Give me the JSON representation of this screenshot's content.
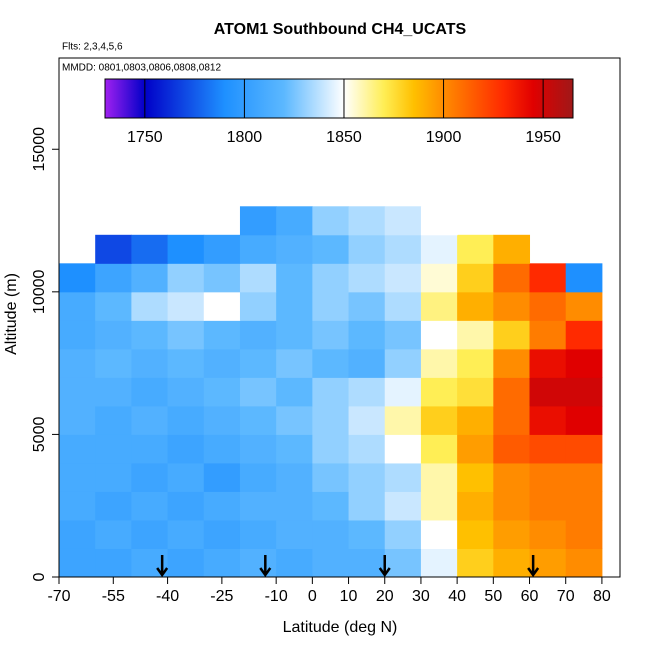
{
  "chart_data": {
    "type": "heatmap",
    "title": "ATOM1 Southbound CH4_UCATS",
    "subtitle": "Flts: 2,3,4,5,6",
    "annotation": "MMDD: 0801,0803,0806,0808,0812",
    "x_label": "Latitude (deg N)",
    "y_label": "Altitude (m)",
    "xlim": [
      -70,
      85
    ],
    "ylim": [
      0,
      18200
    ],
    "xticks": [
      -70,
      -55,
      -40,
      -25,
      -10,
      0,
      10,
      20,
      30,
      40,
      50,
      60,
      70,
      80
    ],
    "yticks": [
      0,
      5000,
      10000,
      15000
    ],
    "xbins": [
      -70,
      -60,
      -50,
      -40,
      -30,
      -20,
      -10,
      0,
      10,
      20,
      30,
      40,
      50,
      60,
      70,
      80
    ],
    "ybins": [
      0,
      1000,
      2000,
      3000,
      4000,
      5000,
      6000,
      7000,
      8000,
      9000,
      10000,
      11000,
      12000,
      13000
    ],
    "z": [
      [
        1805,
        1805,
        1810,
        1805,
        1810,
        1815,
        1810,
        1815,
        1815,
        1825,
        1845,
        1880,
        1890,
        1895,
        1900
      ],
      [
        1805,
        1810,
        1805,
        1810,
        1805,
        1810,
        1815,
        1815,
        1820,
        1830,
        1850,
        1885,
        1895,
        1900,
        1905
      ],
      [
        1810,
        1805,
        1810,
        1805,
        1810,
        1815,
        1815,
        1820,
        1830,
        1840,
        1860,
        1890,
        1900,
        1905,
        1905
      ],
      [
        1810,
        1810,
        1805,
        1810,
        1800,
        1810,
        1815,
        1825,
        1830,
        1835,
        1860,
        1885,
        1900,
        1905,
        1905
      ],
      [
        1810,
        1810,
        1810,
        1805,
        1810,
        1815,
        1820,
        1830,
        1835,
        1850,
        1870,
        1895,
        1915,
        1920,
        1920
      ],
      [
        1815,
        1810,
        1815,
        1810,
        1815,
        1820,
        1825,
        1830,
        1840,
        1860,
        1880,
        1890,
        1910,
        1940,
        1945
      ],
      [
        1815,
        1815,
        1810,
        1815,
        1820,
        1825,
        1820,
        1830,
        1835,
        1845,
        1870,
        1875,
        1910,
        1950,
        1950
      ],
      [
        1815,
        1820,
        1815,
        1820,
        1815,
        1820,
        1825,
        1820,
        1815,
        1830,
        1860,
        1870,
        1900,
        1940,
        1945
      ],
      [
        1810,
        1815,
        1820,
        1825,
        1820,
        1815,
        1820,
        1825,
        1820,
        1825,
        1850,
        1860,
        1880,
        1905,
        1930
      ],
      [
        1810,
        1820,
        1835,
        1840,
        1850,
        1830,
        1820,
        1830,
        1825,
        1835,
        1865,
        1890,
        1900,
        1910,
        1900
      ],
      [
        1790,
        1805,
        1815,
        1830,
        1825,
        1835,
        1820,
        1830,
        1835,
        1840,
        1855,
        1880,
        1910,
        1930,
        1790
      ],
      [
        null,
        1770,
        1780,
        1790,
        1800,
        1810,
        1815,
        1820,
        1830,
        1835,
        1845,
        1870,
        1890,
        null,
        null
      ],
      [
        null,
        null,
        null,
        null,
        null,
        1800,
        1810,
        1830,
        1835,
        1840,
        1850,
        null,
        null,
        null,
        null
      ]
    ],
    "clim": [
      1730,
      1965
    ],
    "cticks": [
      1750,
      1800,
      1850,
      1900,
      1950
    ],
    "colorscale": [
      [
        1730,
        "#a020f0"
      ],
      [
        1750,
        "#0000c8"
      ],
      [
        1790,
        "#1e90ff"
      ],
      [
        1820,
        "#5cb8ff"
      ],
      [
        1850,
        "#ffffff"
      ],
      [
        1870,
        "#ffee55"
      ],
      [
        1885,
        "#ffc000"
      ],
      [
        1900,
        "#ff8c00"
      ],
      [
        1930,
        "#ff2a00"
      ],
      [
        1945,
        "#e00000"
      ],
      [
        1965,
        "#a01818"
      ]
    ],
    "arrows": [
      -41.5,
      -13,
      20,
      61
    ]
  }
}
